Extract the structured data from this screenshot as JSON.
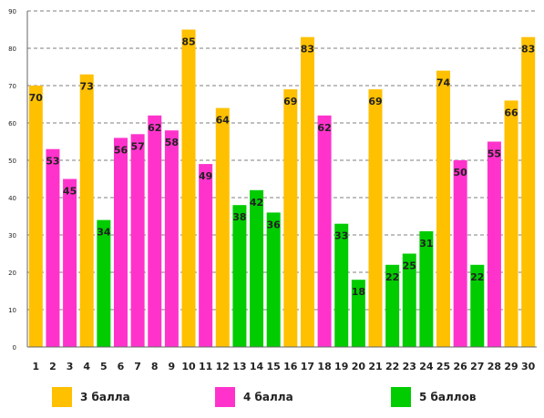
{
  "chart_data": {
    "type": "bar",
    "categories": [
      "1",
      "2",
      "3",
      "4",
      "5",
      "6",
      "7",
      "8",
      "9",
      "10",
      "11",
      "12",
      "13",
      "14",
      "15",
      "16",
      "17",
      "18",
      "19",
      "20",
      "21",
      "22",
      "23",
      "24",
      "25",
      "26",
      "27",
      "28",
      "29",
      "30"
    ],
    "values": [
      70,
      53,
      45,
      73,
      34,
      56,
      57,
      62,
      58,
      85,
      49,
      64,
      38,
      42,
      36,
      69,
      83,
      62,
      33,
      18,
      69,
      22,
      25,
      31,
      74,
      50,
      22,
      55,
      66,
      83
    ],
    "groups": [
      "3 балла",
      "4 балла",
      "4 балла",
      "3 балла",
      "5 баллов",
      "4 балла",
      "4 балла",
      "4 балла",
      "4 балла",
      "3 балла",
      "4 балла",
      "3 балла",
      "5 баллов",
      "5 баллов",
      "5 баллов",
      "3 балла",
      "3 балла",
      "4 балла",
      "5 баллов",
      "5 баллов",
      "3 балла",
      "5 баллов",
      "5 баллов",
      "5 баллов",
      "3 балла",
      "4 балла",
      "5 баллов",
      "4 балла",
      "3 балла",
      "3 балла"
    ],
    "ylim": [
      0,
      90
    ],
    "yticks": [
      0,
      10,
      20,
      30,
      40,
      50,
      60,
      70,
      80,
      90
    ],
    "grid": true,
    "legend_position": "bottom",
    "series": [
      {
        "name": "3 балла",
        "color": "#FFC000"
      },
      {
        "name": "4 балла",
        "color": "#FF33CC"
      },
      {
        "name": "5 баллов",
        "color": "#00CC00"
      }
    ]
  }
}
